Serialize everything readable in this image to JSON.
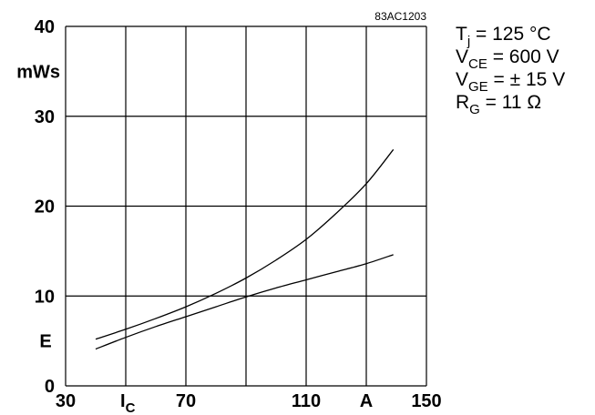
{
  "chart_data": {
    "type": "line",
    "title": "",
    "code_label": "83AC1203",
    "x": {
      "min": 30,
      "max": 150,
      "ticks": [
        {
          "value": 30,
          "label": "30"
        },
        {
          "value": 70,
          "label": "70"
        },
        {
          "value": 110,
          "label": "110"
        },
        {
          "value": 150,
          "label": "150"
        }
      ],
      "symbol": "I",
      "symbol_sub": "C",
      "unit": "A",
      "unit_at": 130,
      "symbol_at": 50,
      "grid": [
        30,
        50,
        70,
        90,
        110,
        130,
        150
      ]
    },
    "y": {
      "min": 0,
      "max": 40,
      "ticks": [
        {
          "value": 0,
          "label": "0"
        },
        {
          "value": 10,
          "label": "10"
        },
        {
          "value": 20,
          "label": "20"
        },
        {
          "value": 30,
          "label": "30"
        },
        {
          "value": 40,
          "label": "40"
        }
      ],
      "unit": "mWs",
      "unit_at": 35,
      "symbol": "E",
      "symbol_at": 5,
      "grid": [
        0,
        10,
        20,
        30,
        40
      ]
    },
    "grid": true,
    "series": [
      {
        "x": [
          40,
          50,
          60,
          70,
          80,
          90,
          100,
          110,
          120,
          130,
          139
        ],
        "y": [
          5.2,
          6.3,
          7.5,
          8.8,
          10.3,
          12.0,
          14.0,
          16.3,
          19.2,
          22.5,
          26.3
        ]
      },
      {
        "x": [
          40,
          50,
          60,
          70,
          80,
          90,
          100,
          110,
          120,
          130,
          139
        ],
        "y": [
          4.1,
          5.4,
          6.6,
          7.7,
          8.8,
          9.9,
          10.9,
          11.8,
          12.7,
          13.6,
          14.6
        ]
      }
    ],
    "conditions": [
      {
        "main": "T",
        "sub": "j",
        "rest": " = 125 °C"
      },
      {
        "main": "V",
        "sub": "CE",
        "rest": " = 600 V"
      },
      {
        "main": "V",
        "sub": "GE",
        "rest": " = ± 15 V"
      },
      {
        "main": "R",
        "sub": "G",
        "rest": " = 11 Ω"
      }
    ]
  }
}
